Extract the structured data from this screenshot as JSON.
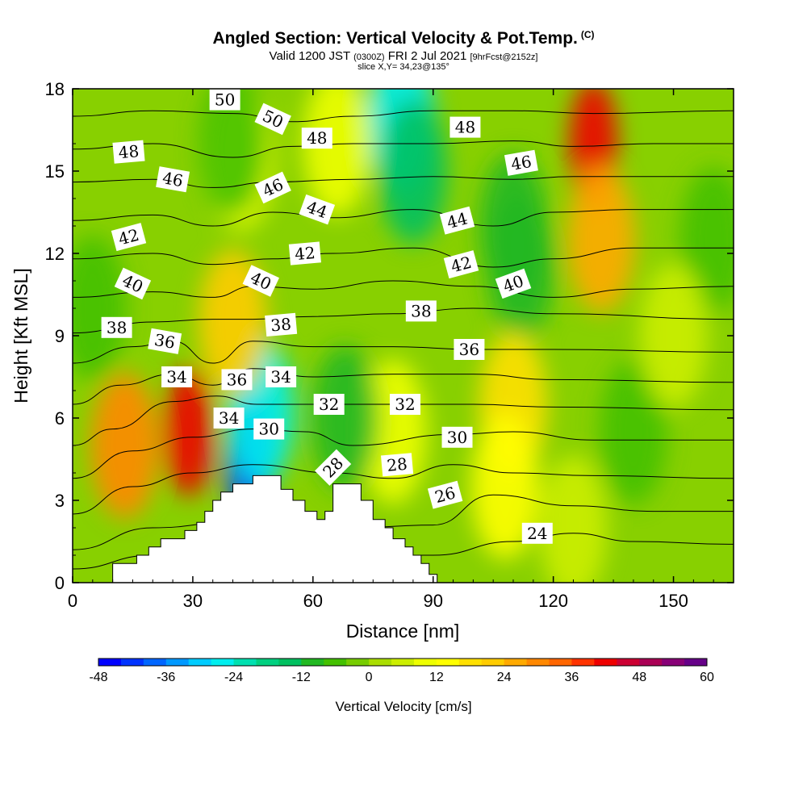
{
  "title": "Angled Section: Vertical Velocity & Pot.Temp.",
  "title_unit": "(C)",
  "subtitle_main": "Valid 1200 JST",
  "subtitle_utc": "(0300Z)",
  "subtitle_date": "FRI 2 Jul 2021",
  "subtitle_fcst": "[9hrFcst@2152z]",
  "slice_text": "slice X,Y= 34,23@135°",
  "colors": {
    "terrain": "#ffffff",
    "contour_line": "#000000",
    "label_bg": "#ffffff"
  },
  "chart_data": {
    "type": "heatmap",
    "xlabel": "Distance [nm]",
    "ylabel": "Height [Kft MSL]",
    "xlim": [
      0,
      165
    ],
    "ylim": [
      0,
      18
    ],
    "x_ticks": [
      "0",
      "30",
      "60",
      "90",
      "120",
      "150"
    ],
    "y_ticks": [
      "0",
      "3",
      "6",
      "9",
      "12",
      "15",
      "18"
    ],
    "colorbar": {
      "label": "Vertical Velocity [cm/s]",
      "tick_labels": [
        "-48",
        "-36",
        "-24",
        "-12",
        "0",
        "12",
        "24",
        "36",
        "48",
        "60"
      ],
      "min": -48,
      "max": 60,
      "step": 4,
      "colors": [
        "#0000ff",
        "#0033ff",
        "#0066ff",
        "#0099ff",
        "#00ccff",
        "#00eeee",
        "#00e0b0",
        "#00d080",
        "#00c060",
        "#22b822",
        "#44c000",
        "#77cc00",
        "#aadd00",
        "#ccee00",
        "#eeff00",
        "#ffff00",
        "#ffe000",
        "#ffcc00",
        "#ffaa00",
        "#ff8800",
        "#ff6600",
        "#ff3300",
        "#ee0000",
        "#cc0033",
        "#aa0055",
        "#880077",
        "#660088"
      ]
    },
    "terrain_profile": [
      [
        0,
        0
      ],
      [
        10,
        0
      ],
      [
        10,
        0.7
      ],
      [
        16,
        0.7
      ],
      [
        16,
        1.0
      ],
      [
        19,
        1.0
      ],
      [
        19,
        1.3
      ],
      [
        22,
        1.3
      ],
      [
        22,
        1.6
      ],
      [
        28,
        1.6
      ],
      [
        28,
        1.9
      ],
      [
        31,
        1.9
      ],
      [
        31,
        2.2
      ],
      [
        33,
        2.2
      ],
      [
        33,
        2.6
      ],
      [
        35,
        2.6
      ],
      [
        35,
        3.0
      ],
      [
        37,
        3.0
      ],
      [
        37,
        3.3
      ],
      [
        40,
        3.3
      ],
      [
        40,
        3.6
      ],
      [
        45,
        3.6
      ],
      [
        45,
        3.9
      ],
      [
        52,
        3.9
      ],
      [
        52,
        3.4
      ],
      [
        55,
        3.4
      ],
      [
        55,
        3.0
      ],
      [
        58,
        3.0
      ],
      [
        58,
        2.6
      ],
      [
        61,
        2.6
      ],
      [
        61,
        2.3
      ],
      [
        63,
        2.3
      ],
      [
        63,
        2.6
      ],
      [
        65,
        2.6
      ],
      [
        65,
        3.6
      ],
      [
        72,
        3.6
      ],
      [
        72,
        3.0
      ],
      [
        75,
        3.0
      ],
      [
        75,
        2.3
      ],
      [
        78,
        2.3
      ],
      [
        78,
        2.0
      ],
      [
        80,
        2.0
      ],
      [
        80,
        1.6
      ],
      [
        83,
        1.6
      ],
      [
        83,
        1.3
      ],
      [
        85,
        1.3
      ],
      [
        85,
        1.0
      ],
      [
        87,
        1.0
      ],
      [
        87,
        0.7
      ],
      [
        89,
        0.7
      ],
      [
        89,
        0.3
      ],
      [
        91,
        0.3
      ],
      [
        91,
        0
      ],
      [
        165,
        0
      ]
    ],
    "velocity_features": [
      {
        "x": 29,
        "y": 5.5,
        "value": 40
      },
      {
        "x": 13,
        "y": 5.0,
        "value": 30
      },
      {
        "x": 130,
        "y": 16.0,
        "value": 40
      },
      {
        "x": 132,
        "y": 12.5,
        "value": 26
      },
      {
        "x": 44,
        "y": 4.5,
        "value": -44
      },
      {
        "x": 47,
        "y": 6.2,
        "value": -28
      },
      {
        "x": 82,
        "y": 16.8,
        "value": -26
      },
      {
        "x": 85,
        "y": 15.0,
        "value": -16
      },
      {
        "x": 110,
        "y": 13.0,
        "value": -12
      },
      {
        "x": 112,
        "y": 11.5,
        "value": -10
      },
      {
        "x": 5,
        "y": 10.0,
        "value": -8
      },
      {
        "x": 160,
        "y": 12.5,
        "value": -8
      },
      {
        "x": 140,
        "y": 5.5,
        "value": -8
      },
      {
        "x": 110,
        "y": 6.5,
        "value": 18
      },
      {
        "x": 108,
        "y": 3.5,
        "value": 12
      },
      {
        "x": 80,
        "y": 5.5,
        "value": 10
      },
      {
        "x": 40,
        "y": 9.5,
        "value": 20
      },
      {
        "x": 42,
        "y": 15.5,
        "value": 10
      },
      {
        "x": 66,
        "y": 16.0,
        "value": 10
      },
      {
        "x": 40,
        "y": 16.0,
        "value": -6
      },
      {
        "x": 150,
        "y": 9.0,
        "value": 6
      },
      {
        "x": 125,
        "y": 2.0,
        "value": 6
      },
      {
        "x": 68,
        "y": 6.0,
        "value": -10
      }
    ],
    "isentropes": [
      {
        "theta": 24,
        "points": [
          [
            0,
            0.5
          ],
          [
            20,
            1.0
          ],
          [
            40,
            1.2
          ],
          [
            70,
            1.0
          ],
          [
            90,
            1.0
          ],
          [
            110,
            1.5
          ],
          [
            125,
            1.8
          ],
          [
            140,
            1.5
          ],
          [
            165,
            1.4
          ]
        ]
      },
      {
        "theta": 26,
        "points": [
          [
            0,
            1.2
          ],
          [
            20,
            2.0
          ],
          [
            40,
            2.2
          ],
          [
            70,
            2.0
          ],
          [
            90,
            2.1
          ],
          [
            105,
            3.2
          ],
          [
            125,
            2.8
          ],
          [
            145,
            2.6
          ],
          [
            165,
            2.6
          ]
        ]
      },
      {
        "theta": 28,
        "points": [
          [
            0,
            2.5
          ],
          [
            15,
            3.5
          ],
          [
            30,
            4.0
          ],
          [
            45,
            4.3
          ],
          [
            65,
            4.0
          ],
          [
            80,
            3.8
          ],
          [
            95,
            4.3
          ],
          [
            110,
            4.0
          ],
          [
            130,
            3.9
          ],
          [
            165,
            3.8
          ]
        ]
      },
      {
        "theta": 30,
        "points": [
          [
            0,
            3.8
          ],
          [
            15,
            4.8
          ],
          [
            30,
            5.3
          ],
          [
            45,
            5.6
          ],
          [
            58,
            5.5
          ],
          [
            70,
            5.0
          ],
          [
            95,
            5.4
          ],
          [
            110,
            5.5
          ],
          [
            130,
            5.2
          ],
          [
            165,
            5.2
          ]
        ]
      },
      {
        "theta": 32,
        "points": [
          [
            0,
            5.0
          ],
          [
            10,
            5.6
          ],
          [
            25,
            6.6
          ],
          [
            36,
            6.8
          ],
          [
            46,
            6.5
          ],
          [
            60,
            6.5
          ],
          [
            80,
            6.5
          ],
          [
            100,
            6.5
          ],
          [
            120,
            6.4
          ],
          [
            165,
            6.3
          ]
        ]
      },
      {
        "theta": 34,
        "points": [
          [
            0,
            6.5
          ],
          [
            12,
            7.2
          ],
          [
            25,
            7.6
          ],
          [
            35,
            7.2
          ],
          [
            45,
            7.8
          ],
          [
            60,
            7.5
          ],
          [
            80,
            7.6
          ],
          [
            100,
            7.6
          ],
          [
            120,
            7.4
          ],
          [
            165,
            7.3
          ]
        ]
      },
      {
        "theta": 36,
        "points": [
          [
            0,
            8.0
          ],
          [
            15,
            8.6
          ],
          [
            25,
            8.8
          ],
          [
            35,
            8.0
          ],
          [
            45,
            8.8
          ],
          [
            60,
            8.6
          ],
          [
            80,
            8.6
          ],
          [
            100,
            8.5
          ],
          [
            120,
            8.5
          ],
          [
            165,
            8.4
          ]
        ]
      },
      {
        "theta": 38,
        "points": [
          [
            0,
            9.1
          ],
          [
            20,
            9.5
          ],
          [
            35,
            9.6
          ],
          [
            45,
            9.6
          ],
          [
            60,
            9.7
          ],
          [
            80,
            9.8
          ],
          [
            100,
            10.0
          ],
          [
            120,
            9.8
          ],
          [
            165,
            9.6
          ]
        ]
      },
      {
        "theta": 40,
        "points": [
          [
            0,
            10.4
          ],
          [
            20,
            10.6
          ],
          [
            35,
            10.4
          ],
          [
            45,
            10.8
          ],
          [
            60,
            10.7
          ],
          [
            80,
            11.0
          ],
          [
            100,
            10.8
          ],
          [
            120,
            10.4
          ],
          [
            140,
            10.7
          ],
          [
            165,
            10.8
          ]
        ]
      },
      {
        "theta": 42,
        "points": [
          [
            0,
            11.8
          ],
          [
            20,
            12.0
          ],
          [
            35,
            11.6
          ],
          [
            50,
            11.8
          ],
          [
            65,
            12.0
          ],
          [
            85,
            12.2
          ],
          [
            105,
            11.5
          ],
          [
            120,
            11.8
          ],
          [
            140,
            12.2
          ],
          [
            165,
            12.2
          ]
        ]
      },
      {
        "theta": 44,
        "points": [
          [
            0,
            13.2
          ],
          [
            20,
            13.4
          ],
          [
            35,
            13.0
          ],
          [
            50,
            13.5
          ],
          [
            65,
            13.3
          ],
          [
            85,
            13.6
          ],
          [
            105,
            13.0
          ],
          [
            120,
            13.5
          ],
          [
            140,
            13.6
          ],
          [
            165,
            13.6
          ]
        ]
      },
      {
        "theta": 46,
        "points": [
          [
            0,
            14.6
          ],
          [
            20,
            14.7
          ],
          [
            35,
            14.4
          ],
          [
            50,
            14.6
          ],
          [
            70,
            14.7
          ],
          [
            90,
            14.8
          ],
          [
            110,
            14.7
          ],
          [
            125,
            14.8
          ],
          [
            145,
            14.8
          ],
          [
            165,
            14.8
          ]
        ]
      },
      {
        "theta": 48,
        "points": [
          [
            0,
            15.8
          ],
          [
            20,
            16.0
          ],
          [
            40,
            15.5
          ],
          [
            55,
            15.9
          ],
          [
            70,
            16.0
          ],
          [
            90,
            16.0
          ],
          [
            110,
            16.1
          ],
          [
            125,
            15.9
          ],
          [
            145,
            16.0
          ],
          [
            165,
            16.0
          ]
        ]
      },
      {
        "theta": 50,
        "points": [
          [
            0,
            17.0
          ],
          [
            20,
            17.2
          ],
          [
            40,
            17.1
          ],
          [
            55,
            16.8
          ],
          [
            70,
            17.0
          ],
          [
            90,
            17.2
          ],
          [
            110,
            17.2
          ],
          [
            130,
            17.1
          ],
          [
            165,
            17.2
          ]
        ]
      }
    ],
    "contour_labels": [
      {
        "text": "50",
        "x": 38,
        "y": 17.6,
        "angle": 0
      },
      {
        "text": "50",
        "x": 50,
        "y": 16.9,
        "angle": 25
      },
      {
        "text": "48",
        "x": 14,
        "y": 15.7,
        "angle": -5
      },
      {
        "text": "48",
        "x": 61,
        "y": 16.2,
        "angle": 0
      },
      {
        "text": "48",
        "x": 98,
        "y": 16.6,
        "angle": 0
      },
      {
        "text": "46",
        "x": 25,
        "y": 14.7,
        "angle": 10
      },
      {
        "text": "46",
        "x": 50,
        "y": 14.4,
        "angle": -25
      },
      {
        "text": "46",
        "x": 112,
        "y": 15.3,
        "angle": -10
      },
      {
        "text": "44",
        "x": 61,
        "y": 13.6,
        "angle": 20
      },
      {
        "text": "44",
        "x": 96,
        "y": 13.2,
        "angle": -15
      },
      {
        "text": "42",
        "x": 14,
        "y": 12.6,
        "angle": -15
      },
      {
        "text": "42",
        "x": 58,
        "y": 12.0,
        "angle": -5
      },
      {
        "text": "42",
        "x": 97,
        "y": 11.6,
        "angle": -15
      },
      {
        "text": "40",
        "x": 15,
        "y": 10.9,
        "angle": 25
      },
      {
        "text": "40",
        "x": 47,
        "y": 11.0,
        "angle": 25
      },
      {
        "text": "40",
        "x": 110,
        "y": 10.9,
        "angle": -20
      },
      {
        "text": "38",
        "x": 11,
        "y": 9.3,
        "angle": 0
      },
      {
        "text": "38",
        "x": 52,
        "y": 9.4,
        "angle": -5
      },
      {
        "text": "38",
        "x": 87,
        "y": 9.9,
        "angle": 0
      },
      {
        "text": "36",
        "x": 23,
        "y": 8.8,
        "angle": 10
      },
      {
        "text": "36",
        "x": 41,
        "y": 7.4,
        "angle": 0
      },
      {
        "text": "36",
        "x": 99,
        "y": 8.5,
        "angle": 0
      },
      {
        "text": "34",
        "x": 26,
        "y": 7.5,
        "angle": 0
      },
      {
        "text": "34",
        "x": 39,
        "y": 6.0,
        "angle": 0
      },
      {
        "text": "34",
        "x": 52,
        "y": 7.5,
        "angle": 0
      },
      {
        "text": "32",
        "x": 64,
        "y": 6.5,
        "angle": 0
      },
      {
        "text": "32",
        "x": 83,
        "y": 6.5,
        "angle": 0
      },
      {
        "text": "30",
        "x": 49,
        "y": 5.6,
        "angle": 0
      },
      {
        "text": "30",
        "x": 96,
        "y": 5.3,
        "angle": 0
      },
      {
        "text": "28",
        "x": 65,
        "y": 4.2,
        "angle": -45
      },
      {
        "text": "28",
        "x": 81,
        "y": 4.3,
        "angle": -5
      },
      {
        "text": "26",
        "x": 93,
        "y": 3.2,
        "angle": -15
      },
      {
        "text": "24",
        "x": 116,
        "y": 1.8,
        "angle": 0
      }
    ]
  }
}
